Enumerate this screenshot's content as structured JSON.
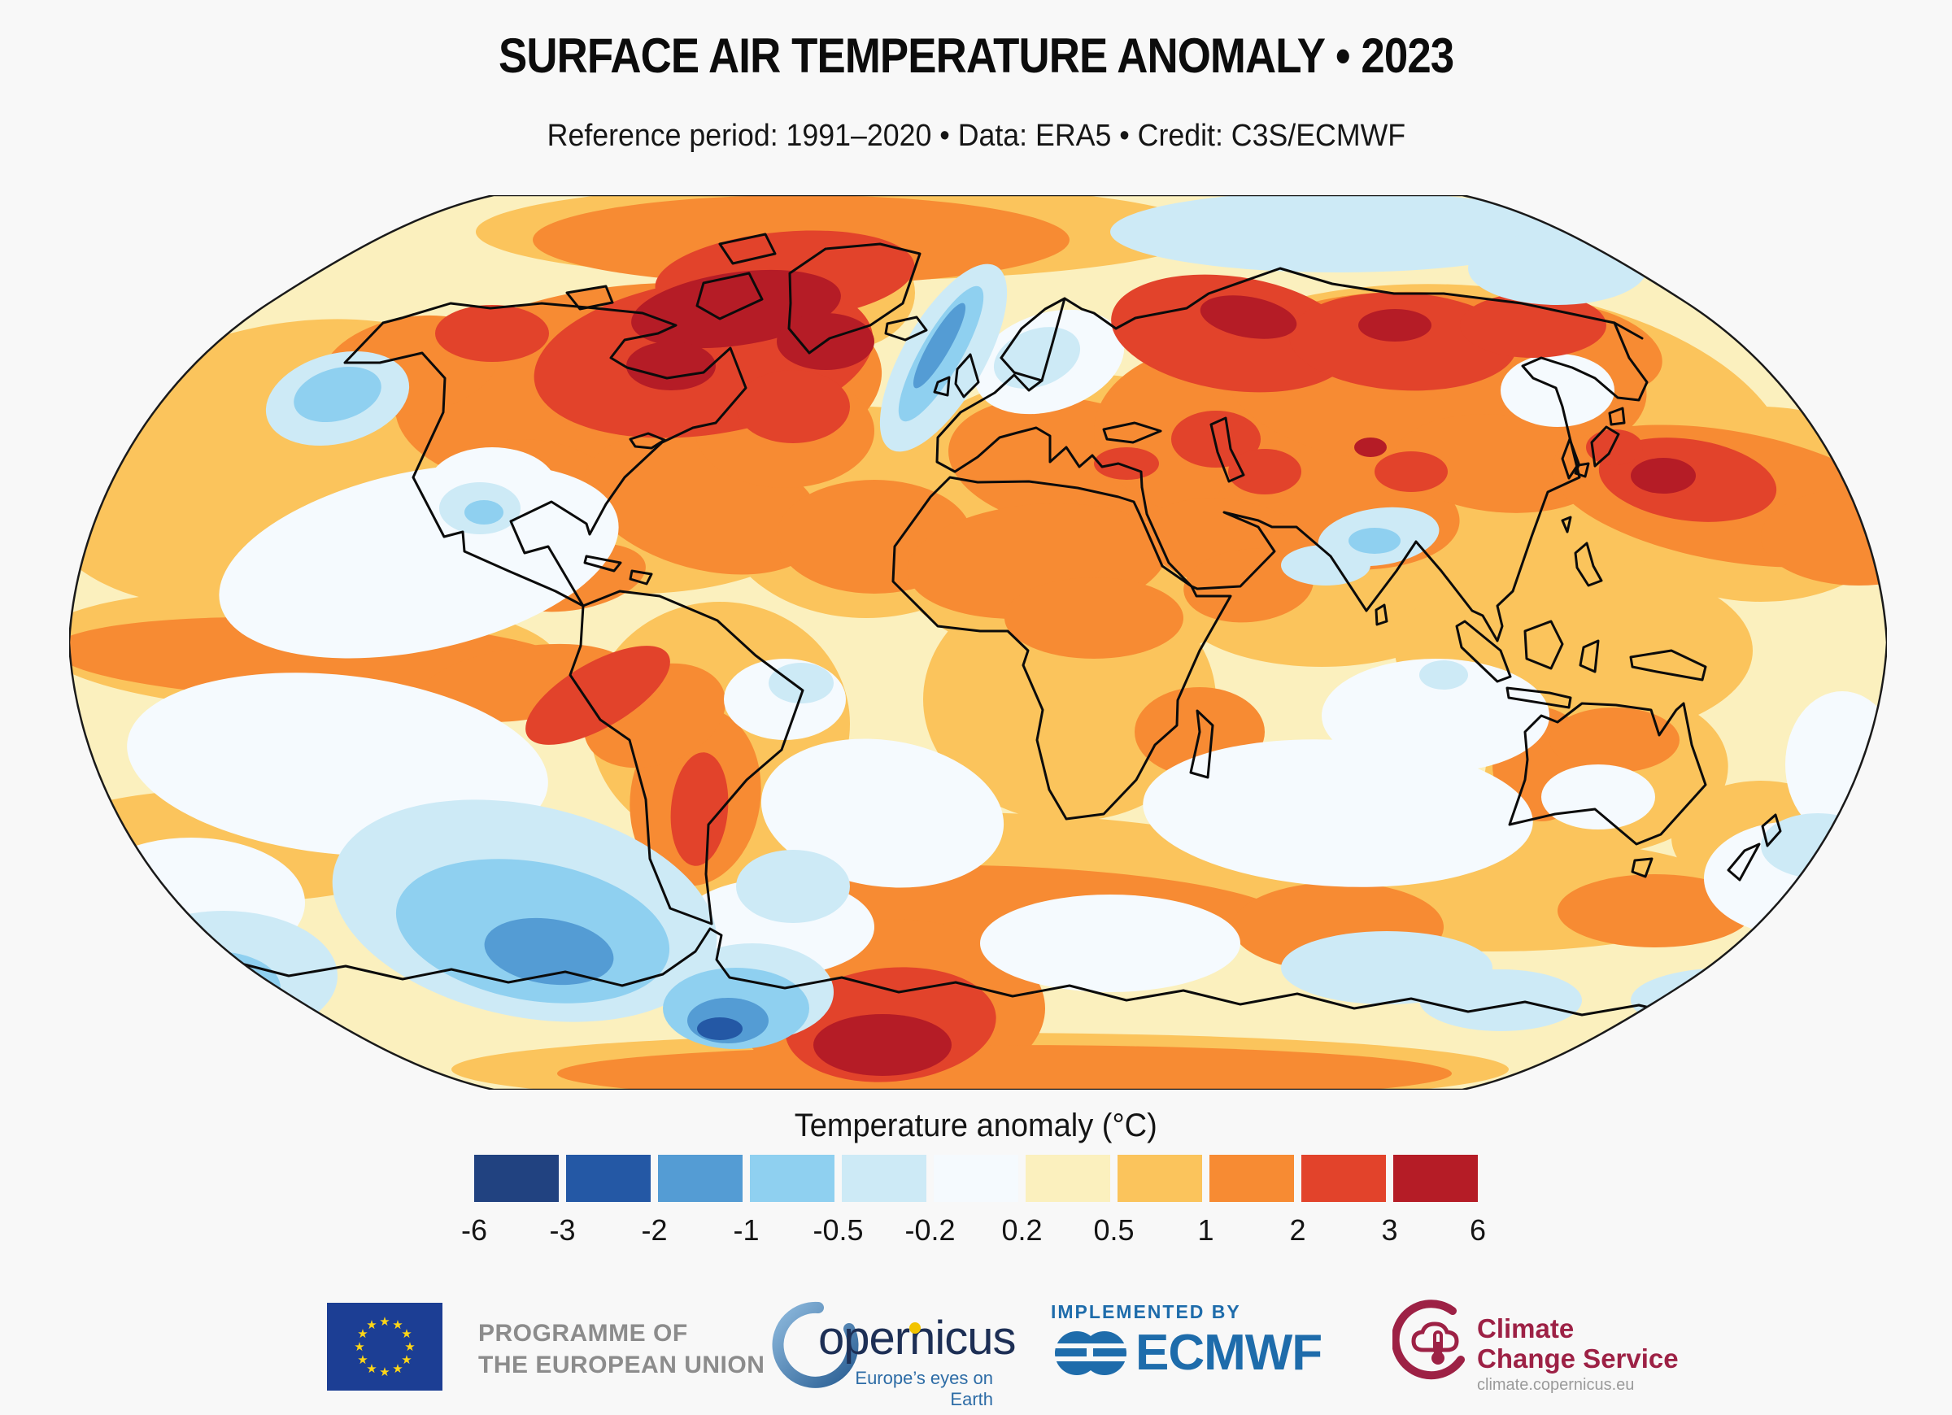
{
  "header": {
    "title": "SURFACE AIR TEMPERATURE ANOMALY • 2023",
    "subtitle": "Reference period: 1991–2020 • Data: ERA5 • Credit: C3S/ECMWF"
  },
  "legend": {
    "title": "Temperature anomaly (°C)",
    "tick_labels": [
      "-6",
      "-3",
      "-2",
      "-1",
      "-0.5",
      "-0.2",
      "0.2",
      "0.5",
      "1",
      "2",
      "3",
      "6"
    ],
    "colors": [
      "#214280",
      "#2458A5",
      "#549CD4",
      "#8FD0F0",
      "#CDEAF6",
      "#F5FAFE",
      "#FBF0BE",
      "#FBC45C",
      "#F78B33",
      "#E2432B",
      "#B51C26"
    ]
  },
  "chart_data": {
    "type": "heatmap",
    "title": "SURFACE AIR TEMPERATURE ANOMALY • 2023",
    "variable": "Temperature anomaly (°C)",
    "projection": "Robinson world map",
    "colorbar_boundaries": [
      -6,
      -3,
      -2,
      -1,
      -0.5,
      -0.2,
      0.2,
      0.5,
      1,
      2,
      3,
      6
    ],
    "colorbar_colors": [
      "#214280",
      "#2458A5",
      "#549CD4",
      "#8FD0F0",
      "#CDEAF6",
      "#F5FAFE",
      "#FBF0BE",
      "#FBC45C",
      "#F78B33",
      "#E2432B",
      "#B51C26"
    ]
  },
  "footer": {
    "eu_programme": {
      "label_line1": "PROGRAMME OF",
      "label_line2": "THE EUROPEAN UNION"
    },
    "copernicus": {
      "wordmark": "opernicus",
      "tagline": "Europe’s eyes on Earth"
    },
    "ecmwf": {
      "implemented_by": "IMPLEMENTED BY",
      "wordmark": "ECMWF"
    },
    "c3s": {
      "name_line1": "Climate",
      "name_line2": "Change Service",
      "url": "climate.copernicus.eu"
    }
  }
}
